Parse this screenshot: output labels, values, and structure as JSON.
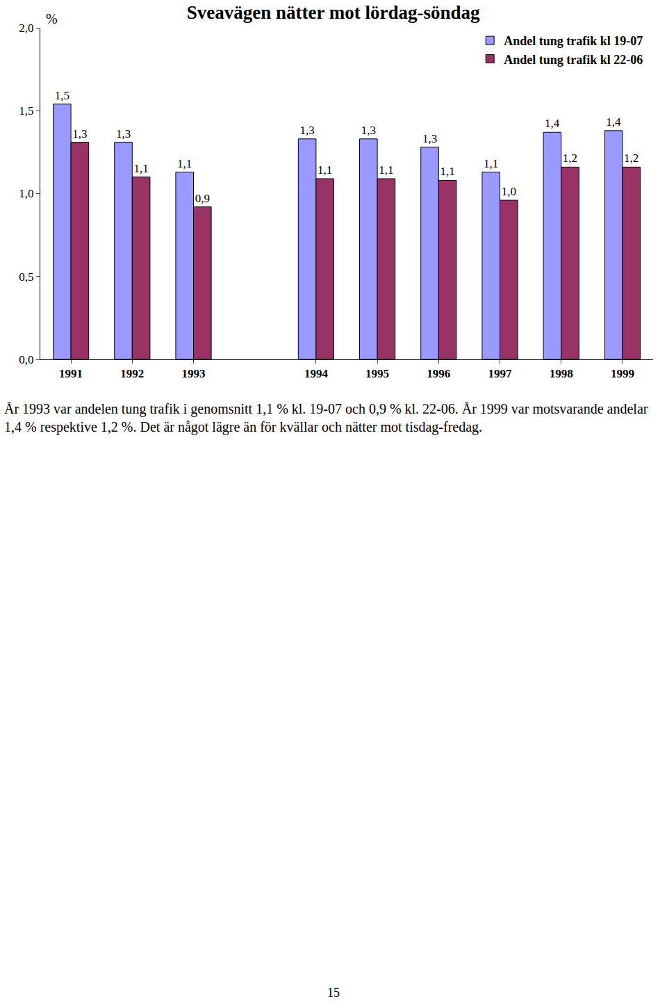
{
  "chart_data": {
    "type": "bar",
    "title": "Sveavägen nätter mot lördag-söndag",
    "y_label": "%",
    "categories": [
      "1991",
      "1992",
      "1993",
      null,
      "1994",
      "1995",
      "1996",
      "1997",
      "1998",
      "1999"
    ],
    "series": [
      {
        "name": "Andel tung trafik kl 19-07",
        "color": "#9999ff",
        "values": [
          1.54,
          1.31,
          1.13,
          null,
          1.33,
          1.33,
          1.28,
          1.13,
          1.37,
          1.38
        ],
        "value_labels": [
          "1,5",
          "1,3",
          "1,1",
          null,
          "1,3",
          "1,3",
          "1,3",
          "1,1",
          "1,4",
          "1,4"
        ]
      },
      {
        "name": "Andel tung trafik kl 22-06",
        "color": "#993366",
        "values": [
          1.31,
          1.1,
          0.92,
          null,
          1.09,
          1.09,
          1.08,
          0.96,
          1.16,
          1.16
        ],
        "value_labels": [
          "1,3",
          "1,1",
          "0,9",
          null,
          "1,1",
          "1,1",
          "1,1",
          "1,0",
          "1,2",
          "1,2"
        ]
      }
    ],
    "ylim": [
      0,
      2
    ],
    "yticks": [
      {
        "value": 0,
        "label": "0,0"
      },
      {
        "value": 0.5,
        "label": "0,5"
      },
      {
        "value": 1,
        "label": "1,0"
      },
      {
        "value": 1.5,
        "label": "1,5"
      },
      {
        "value": 2,
        "label": "2,0"
      }
    ],
    "grid": false,
    "legend": "top right",
    "data_labels": true
  },
  "caption": "År 1993 var andelen tung trafik i genomsnitt 1,1 % kl. 19-07 och 0,9 % kl. 22-06. År 1999 var motsvarande andelar 1,4 % respektive 1,2 %. Det är något lägre än för kvällar och nätter mot tisdag-fredag.",
  "page": "15"
}
